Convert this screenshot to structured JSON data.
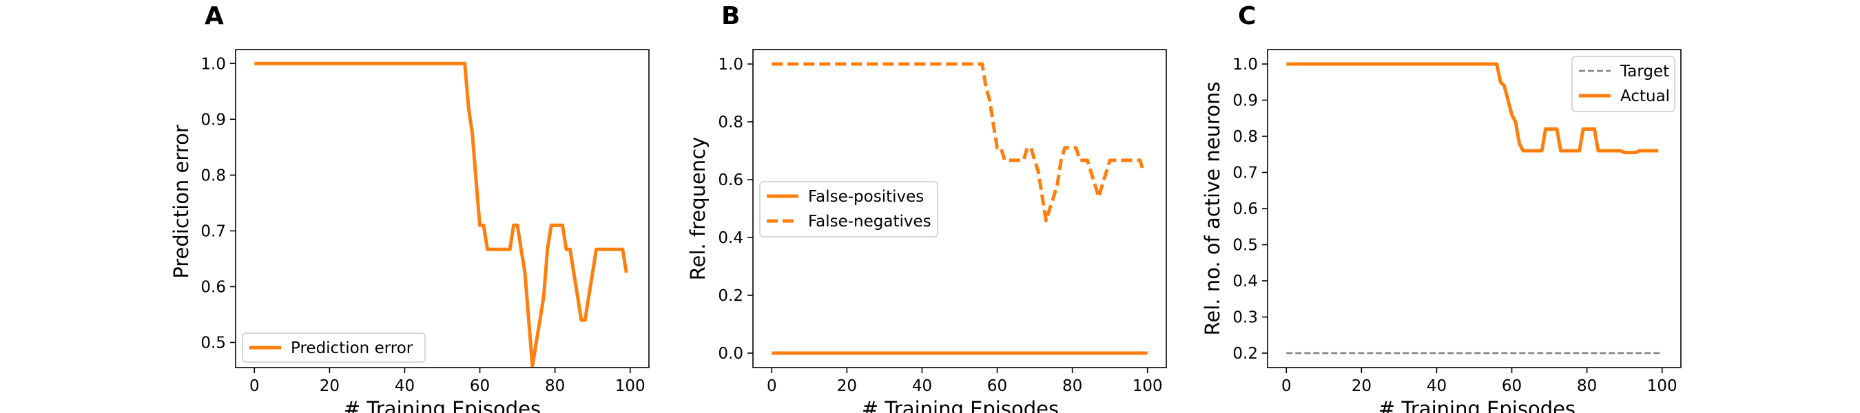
{
  "chart_data": [
    {
      "panel": "A",
      "type": "line",
      "xlabel": "# Training Episodes",
      "ylabel": "Prediction error",
      "xlim": [
        -5,
        105
      ],
      "ylim": [
        0.455,
        1.025
      ],
      "xticks": [
        0,
        20,
        40,
        60,
        80,
        100
      ],
      "yticks": [
        0.5,
        0.6,
        0.7,
        0.8,
        0.9,
        1.0
      ],
      "ytick_labels": [
        "0.5",
        "0.6",
        "0.7",
        "0.8",
        "0.9",
        "1.0"
      ],
      "legend": "lower left",
      "colors": {
        "line": "#ff7f0e"
      },
      "series": [
        {
          "name": "Prediction error",
          "style": "solid",
          "x": [
            0,
            56,
            57,
            58,
            59,
            60,
            61,
            62,
            63,
            64,
            65,
            66,
            67,
            68,
            69,
            70,
            71,
            72,
            73,
            74,
            75,
            76,
            77,
            78,
            79,
            80,
            81,
            82,
            83,
            84,
            85,
            86,
            87,
            88,
            89,
            90,
            91,
            92,
            93,
            94,
            95,
            96,
            97,
            98,
            99
          ],
          "y": [
            1.0,
            1.0,
            0.92,
            0.875,
            0.79,
            0.71,
            0.71,
            0.667,
            0.667,
            0.667,
            0.667,
            0.667,
            0.667,
            0.667,
            0.71,
            0.71,
            0.667,
            0.625,
            0.54,
            0.458,
            0.5,
            0.54,
            0.583,
            0.667,
            0.71,
            0.71,
            0.71,
            0.71,
            0.667,
            0.667,
            0.625,
            0.583,
            0.54,
            0.54,
            0.583,
            0.625,
            0.667,
            0.667,
            0.667,
            0.667,
            0.667,
            0.667,
            0.667,
            0.667,
            0.625
          ]
        }
      ]
    },
    {
      "panel": "B",
      "type": "line",
      "xlabel": "# Training Episodes",
      "ylabel": "Rel. frequency",
      "xlim": [
        -5,
        105
      ],
      "ylim": [
        -0.05,
        1.05
      ],
      "xticks": [
        0,
        20,
        40,
        60,
        80,
        100
      ],
      "yticks": [
        0.0,
        0.2,
        0.4,
        0.6,
        0.8,
        1.0
      ],
      "ytick_labels": [
        "0.0",
        "0.2",
        "0.4",
        "0.6",
        "0.8",
        "1.0"
      ],
      "legend": "center left",
      "colors": {
        "line": "#ff7f0e"
      },
      "series": [
        {
          "name": "False-positives",
          "style": "solid",
          "x": [
            0,
            100
          ],
          "y": [
            0.0,
            0.0
          ]
        },
        {
          "name": "False-negatives",
          "style": "dashed",
          "x": [
            0,
            56,
            57,
            58,
            59,
            60,
            61,
            62,
            63,
            64,
            65,
            66,
            67,
            68,
            69,
            70,
            71,
            72,
            73,
            74,
            75,
            76,
            77,
            78,
            79,
            80,
            81,
            82,
            83,
            84,
            85,
            86,
            87,
            88,
            89,
            90,
            91,
            92,
            93,
            94,
            95,
            96,
            97,
            98,
            99
          ],
          "y": [
            1.0,
            1.0,
            0.92,
            0.875,
            0.79,
            0.71,
            0.71,
            0.667,
            0.667,
            0.667,
            0.667,
            0.667,
            0.667,
            0.71,
            0.71,
            0.667,
            0.625,
            0.54,
            0.458,
            0.5,
            0.54,
            0.583,
            0.667,
            0.71,
            0.71,
            0.71,
            0.71,
            0.667,
            0.667,
            0.667,
            0.625,
            0.583,
            0.54,
            0.583,
            0.625,
            0.667,
            0.667,
            0.667,
            0.667,
            0.667,
            0.667,
            0.667,
            0.667,
            0.667,
            0.625
          ]
        }
      ]
    },
    {
      "panel": "C",
      "type": "line",
      "xlabel": "# Training Episodes",
      "ylabel": "Rel. no. of active neurons",
      "xlim": [
        -5,
        105
      ],
      "ylim": [
        0.16,
        1.04
      ],
      "xticks": [
        0,
        20,
        40,
        60,
        80,
        100
      ],
      "yticks": [
        0.2,
        0.3,
        0.4,
        0.5,
        0.6,
        0.7,
        0.8,
        0.9,
        1.0
      ],
      "ytick_labels": [
        "0.2",
        "0.3",
        "0.4",
        "0.5",
        "0.6",
        "0.7",
        "0.8",
        "0.9",
        "1.0"
      ],
      "legend": "upper right",
      "colors": {
        "target": "#808080",
        "actual": "#ff7f0e"
      },
      "series": [
        {
          "name": "Target",
          "style": "dashed-thin",
          "x": [
            0,
            100
          ],
          "y": [
            0.2,
            0.2
          ]
        },
        {
          "name": "Actual",
          "style": "solid",
          "x": [
            0,
            56,
            57,
            58,
            59,
            60,
            61,
            62,
            63,
            64,
            65,
            66,
            67,
            68,
            69,
            70,
            71,
            72,
            73,
            74,
            75,
            76,
            77,
            78,
            79,
            80,
            81,
            82,
            83,
            84,
            85,
            86,
            87,
            88,
            89,
            90,
            91,
            92,
            93,
            94,
            95,
            96,
            97,
            98,
            99
          ],
          "y": [
            1.0,
            1.0,
            0.95,
            0.94,
            0.9,
            0.86,
            0.84,
            0.78,
            0.76,
            0.76,
            0.76,
            0.76,
            0.76,
            0.76,
            0.82,
            0.82,
            0.82,
            0.82,
            0.76,
            0.76,
            0.76,
            0.76,
            0.76,
            0.76,
            0.82,
            0.82,
            0.82,
            0.82,
            0.76,
            0.76,
            0.76,
            0.76,
            0.76,
            0.76,
            0.76,
            0.755,
            0.755,
            0.755,
            0.755,
            0.76,
            0.76,
            0.76,
            0.76,
            0.76,
            0.76
          ]
        }
      ]
    }
  ]
}
